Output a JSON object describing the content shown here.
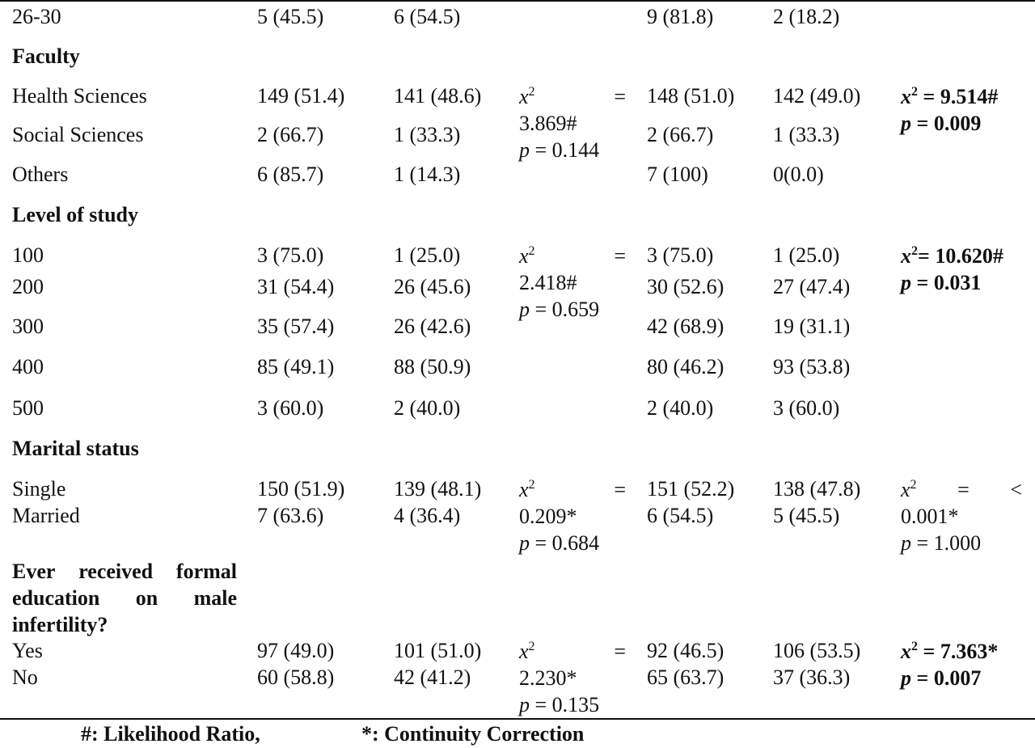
{
  "rows": {
    "age_26_30": {
      "label": "26-30",
      "c1": "5 (45.5)",
      "c2": "6 (54.5)",
      "c3": "9 (81.8)",
      "c4": "2 (18.2)"
    },
    "faculty": {
      "heading": "Faculty",
      "health": {
        "label": "Health Sciences",
        "c1": "149 (51.4)",
        "c2": "141 (48.6)",
        "c3": "148 (51.0)",
        "c4": "142 (49.0)"
      },
      "social": {
        "label": "Social Sciences",
        "c1": "2 (66.7)",
        "c2": "1 (33.3)",
        "c3": "2 (66.7)",
        "c4": "1 (33.3)"
      },
      "others": {
        "label": "Others",
        "c1": "6 (85.7)",
        "c2": "1 (14.3)",
        "c3": "7 (100)",
        "c4": "0(0.0)"
      },
      "test1": {
        "chi": "x",
        "eq": "=",
        "val": "3.869#",
        "p_sym": "p",
        "p_val": " = 0.144"
      },
      "test2": {
        "chi": "x",
        "val": " = 9.514#",
        "p_sym": "p",
        "p_val": " = 0.009"
      }
    },
    "level": {
      "heading": "Level of study",
      "l100": {
        "label": "100",
        "c1": "3 (75.0)",
        "c2": "1 (25.0)",
        "c3": "3 (75.0)",
        "c4": "1 (25.0)"
      },
      "l200": {
        "label": "200",
        "c1": "31 (54.4)",
        "c2": "26 (45.6)",
        "c3": "30 (52.6)",
        "c4": "27 (47.4)"
      },
      "l300": {
        "label": "300",
        "c1": "35 (57.4)",
        "c2": "26 (42.6)",
        "c3": "42 (68.9)",
        "c4": "19 (31.1)"
      },
      "l400": {
        "label": "400",
        "c1": "85 (49.1)",
        "c2": "88 (50.9)",
        "c3": "80 (46.2)",
        "c4": "93 (53.8)"
      },
      "l500": {
        "label": "500",
        "c1": "3 (60.0)",
        "c2": "2 (40.0)",
        "c3": "2 (40.0)",
        "c4": "3 (60.0)"
      },
      "test1": {
        "chi": "x",
        "eq": "=",
        "val": "2.418#",
        "p_sym": "p",
        "p_val": " = 0.659"
      },
      "test2": {
        "chi": "x",
        "val": "= 10.620#",
        "p_sym": "p",
        "p_val": " = 0.031"
      }
    },
    "marital": {
      "heading": "Marital status",
      "single": {
        "label": "Single",
        "c1": "150 (51.9)",
        "c2": "139 (48.1)",
        "c3": "151 (52.2)",
        "c4": "138 (47.8)"
      },
      "married": {
        "label": "Married",
        "c1": "7 (63.6)",
        "c2": "4 (36.4)",
        "c3": "6 (54.5)",
        "c4": "5 (45.5)"
      },
      "test1": {
        "chi": "x",
        "eq": "=",
        "val": "0.209*",
        "p_sym": "p",
        "p_val": " = 0.684"
      },
      "test2": {
        "chi": "x",
        "eq": "=",
        "lt": "<",
        "val": "0.001*",
        "p_sym": "p",
        "p_val": " = 1.000"
      }
    },
    "education": {
      "heading_l1": [
        "Ever",
        "received",
        "formal"
      ],
      "heading_l2": [
        "education",
        "on",
        "male"
      ],
      "heading_l3": "infertility?",
      "yes": {
        "label": "Yes",
        "c1": "97 (49.0)",
        "c2": "101 (51.0)",
        "c3": "92 (46.5)",
        "c4": "106 (53.5)"
      },
      "no": {
        "label": "No",
        "c1": "60 (58.8)",
        "c2": "42 (41.2)",
        "c3": "65 (63.7)",
        "c4": "37 (36.3)"
      },
      "test1": {
        "chi": "x",
        "eq": "=",
        "val": "2.230*",
        "p_sym": "p",
        "p_val": " = 0.135"
      },
      "test2": {
        "chi": "x",
        "val": " = 7.363*",
        "p_sym": "p",
        "p_val": " = 0.007"
      }
    }
  },
  "footnotes": {
    "hash": "#: Likelihood Ratio,",
    "star": "*: Continuity Correction"
  },
  "sup2": "2"
}
